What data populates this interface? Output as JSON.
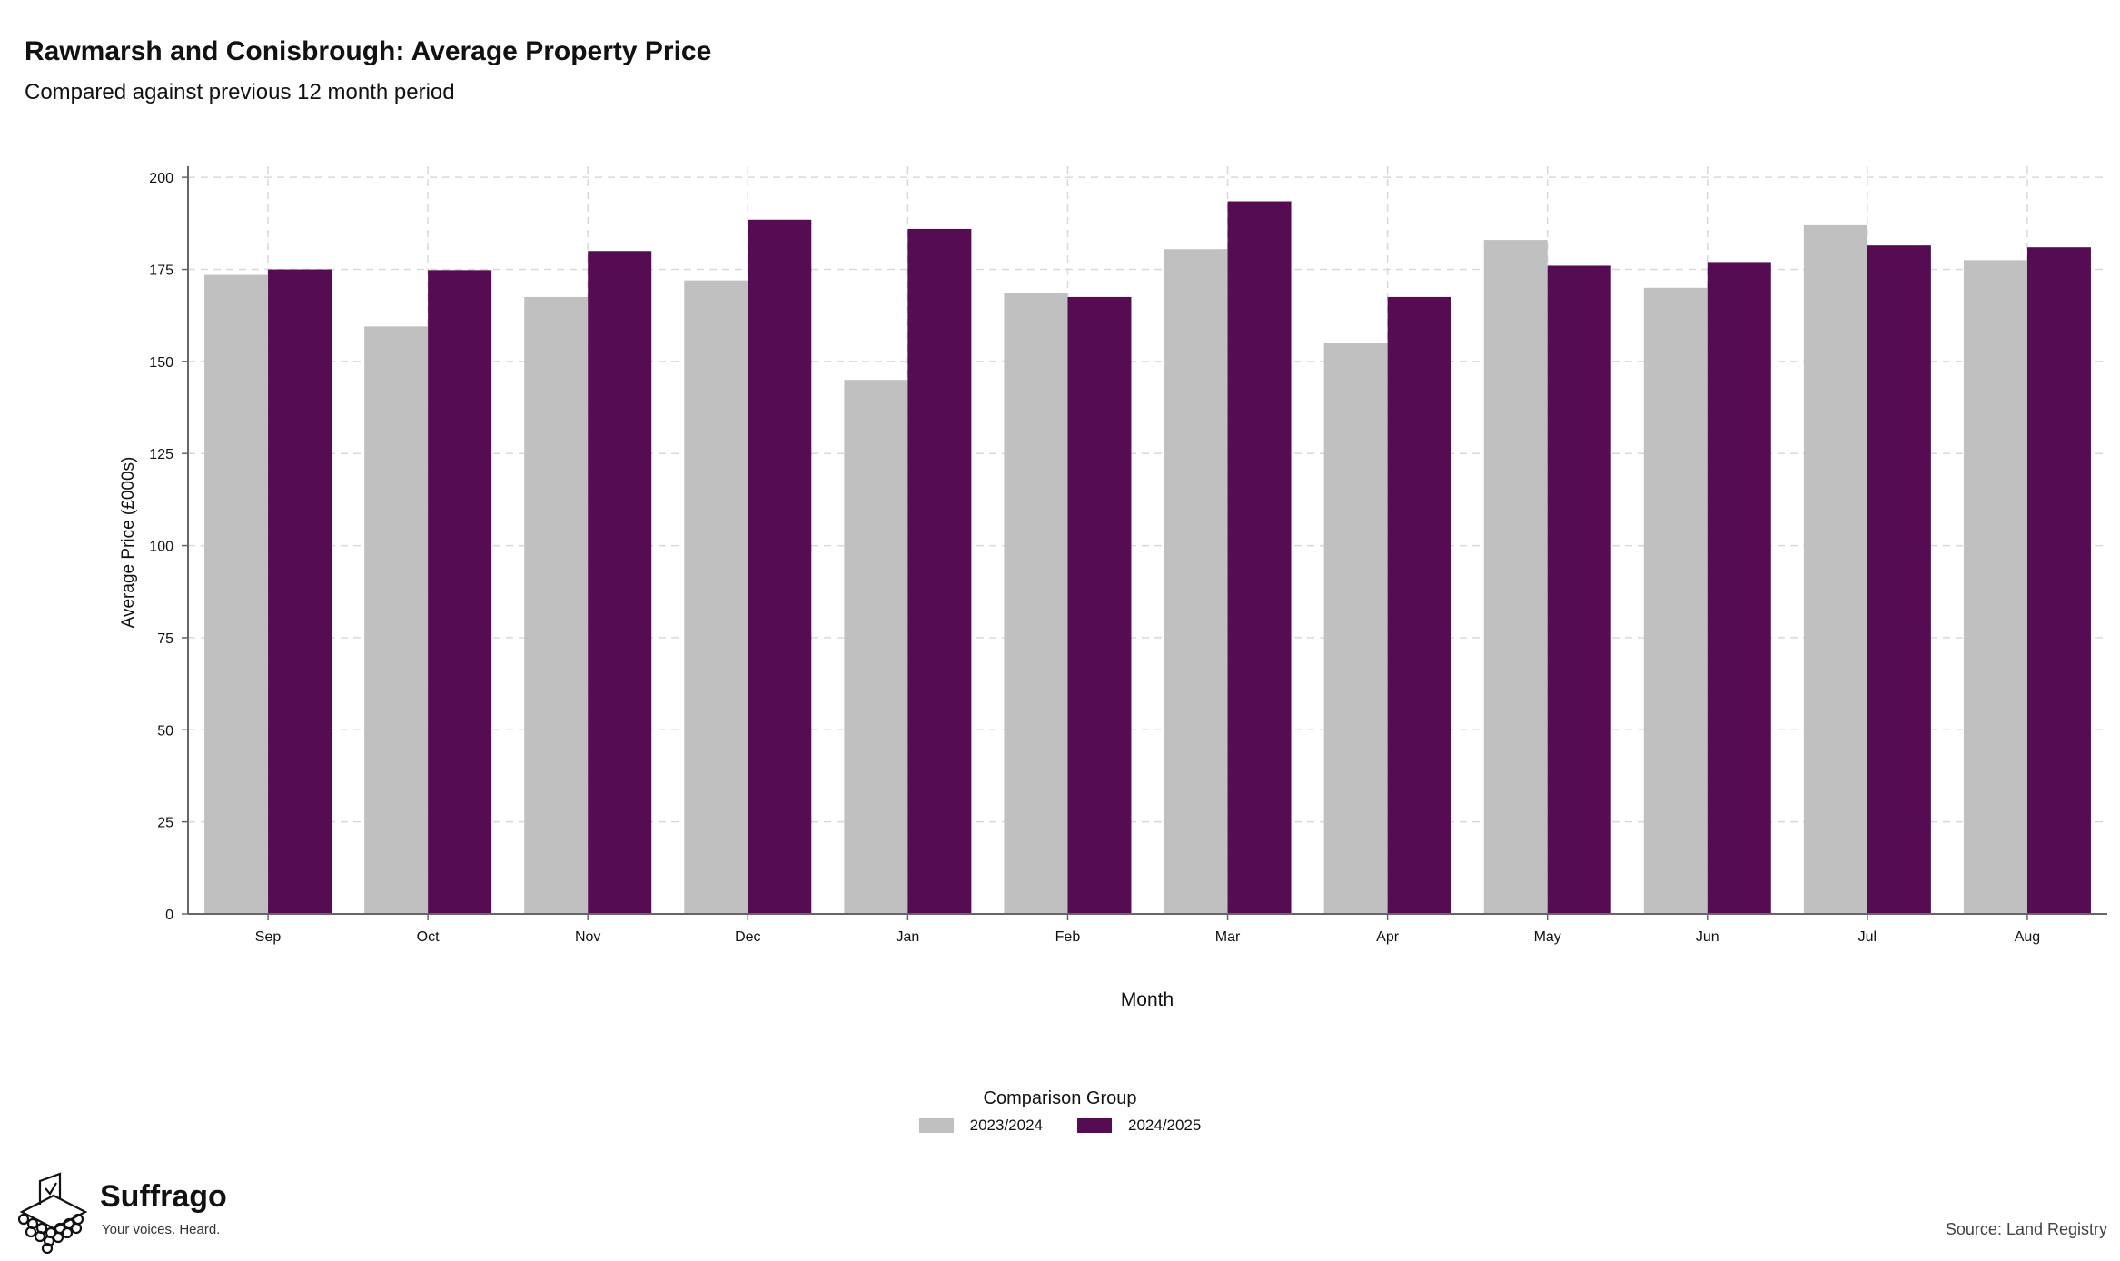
{
  "chart_data": {
    "type": "bar",
    "title": "Rawmarsh and Conisbrough: Average Property Price",
    "subtitle": "Compared against previous 12 month period",
    "xlabel": "Month",
    "ylabel": "Average Price (£000s)",
    "ylim": [
      0,
      203
    ],
    "yticks": [
      0,
      25,
      50,
      75,
      100,
      125,
      150,
      175,
      200
    ],
    "grid": true,
    "legend_title": "Comparison Group",
    "legend_position": "bottom",
    "categories": [
      "Sep",
      "Oct",
      "Nov",
      "Dec",
      "Jan",
      "Feb",
      "Mar",
      "Apr",
      "May",
      "Jun",
      "Jul",
      "Aug"
    ],
    "series": [
      {
        "name": "2023/2024",
        "color": "#c0c0c0",
        "values": [
          173.5,
          159.5,
          167.5,
          172,
          145,
          168.5,
          180.5,
          155,
          183,
          170,
          187,
          177.5
        ]
      },
      {
        "name": "2024/2025",
        "color": "#560c52",
        "values": [
          175,
          174.8,
          180,
          188.5,
          186,
          167.5,
          193.5,
          167.5,
          176,
          177,
          181.5,
          181
        ]
      }
    ]
  },
  "branding": {
    "logo_icon": "ballot-box-icon",
    "name": "Suffrago",
    "tagline": "Your voices. Heard."
  },
  "source": "Source: Land Registry"
}
